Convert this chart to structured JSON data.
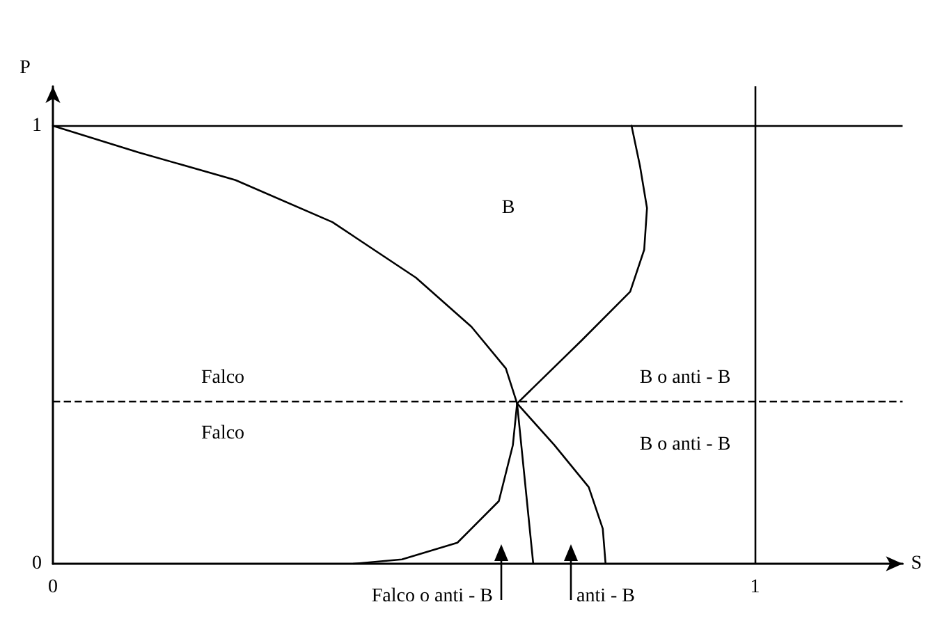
{
  "chart_data": {
    "type": "line",
    "xlabel": "S",
    "ylabel": "P",
    "xlim": [
      0,
      1.21
    ],
    "ylim": [
      0,
      1.09
    ],
    "xticks": [
      0,
      1
    ],
    "yticks": [
      0,
      1
    ],
    "line_style": "solid",
    "series": [
      {
        "color": "#000000",
        "x": [
          0,
          0.122,
          0.26,
          0.398,
          0.517,
          0.596,
          0.645,
          0.661,
          0.655,
          0.635,
          0.576,
          0.497,
          0.428
        ],
        "values": [
          1,
          0.939,
          0.876,
          0.78,
          0.653,
          0.541,
          0.446,
          0.366,
          0.271,
          0.143,
          0.048,
          0.01,
          0
        ]
      },
      {
        "color": "#000000",
        "x": [
          0.824,
          0.836,
          0.846,
          0.842,
          0.822,
          0.753,
          0.661
        ],
        "values": [
          1,
          0.908,
          0.812,
          0.717,
          0.621,
          0.51,
          0.366
        ]
      },
      {
        "color": "#000000",
        "x": [
          0.661,
          0.684
        ],
        "values": [
          0.366,
          0
        ]
      },
      {
        "color": "#000000",
        "x": [
          0.661,
          0.714,
          0.763,
          0.783,
          0.787
        ],
        "values": [
          0.366,
          0.271,
          0.175,
          0.08,
          0
        ]
      }
    ],
    "ref_lines": [
      {
        "axis": "y",
        "value": 1,
        "color": "#000000",
        "line_style": "solid"
      },
      {
        "axis": "x",
        "value": 1,
        "color": "#000000",
        "line_style": "solid"
      },
      {
        "axis": "y",
        "value": 0.366,
        "color": "#000000",
        "line_style": "dashed"
      }
    ],
    "annotations": [
      "B",
      "Falco",
      "Falco",
      "B o anti - B",
      "B o anti - B",
      "Falco o anti - B",
      "anti - B"
    ]
  }
}
